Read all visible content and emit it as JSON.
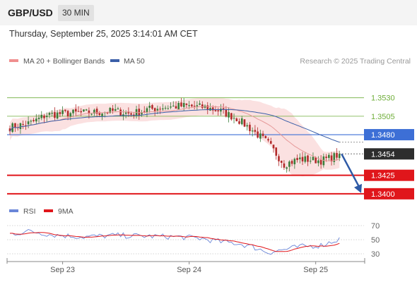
{
  "header": {
    "symbol": "GBP/USD",
    "timeframe": "30 MIN"
  },
  "timestamp": "Thursday, September 25, 2025 3:14:01 AM CET",
  "legend": {
    "bollinger": "MA 20 + Bollinger Bands",
    "ma50": "MA 50",
    "credit": "Research © 2025 Trading Central",
    "rsi": "RSI",
    "rsi_ma": "9MA"
  },
  "colors": {
    "candle_up": "#3a7d3a",
    "candle_down": "#b22a2a",
    "bollinger_fill": "#fadcdc",
    "ma20": "#e69a9a",
    "ma50": "#3b5fa8",
    "resistance": "#6fae3a",
    "pivot": "#3d6fd6",
    "support": "#e0161b",
    "price_tag": "#2d2d2d",
    "rsi_line": "#6a86d8",
    "rsi_ma": "#e0161b",
    "forecast_arrow": "#2e5aa6"
  },
  "chart_data": {
    "type": "candlestick",
    "symbol": "GBP/USD",
    "interval": "30 MIN",
    "ylim": [
      1.3397,
      1.3565
    ],
    "x_ticks": [
      {
        "label": "Sep 23",
        "index": 20
      },
      {
        "label": "Sep 24",
        "index": 68
      },
      {
        "label": "Sep 25",
        "index": 116
      }
    ],
    "levels": [
      {
        "value": 1.353,
        "label": "1.3530",
        "kind": "resistance"
      },
      {
        "value": 1.3505,
        "label": "1.3505",
        "kind": "resistance"
      },
      {
        "value": 1.348,
        "label": "1.3480",
        "kind": "pivot"
      },
      {
        "value": 1.3425,
        "label": "1.3425",
        "kind": "support"
      },
      {
        "value": 1.34,
        "label": "1.3400",
        "kind": "support"
      }
    ],
    "last_price": {
      "value": 1.3454,
      "label": "1.3454"
    },
    "forecast": {
      "from": 1.3454,
      "to": 1.3401
    },
    "close_anchors": [
      {
        "i": 0,
        "v": 1.349
      },
      {
        "i": 8,
        "v": 1.3496
      },
      {
        "i": 14,
        "v": 1.3507
      },
      {
        "i": 22,
        "v": 1.3509
      },
      {
        "i": 32,
        "v": 1.351
      },
      {
        "i": 40,
        "v": 1.3512
      },
      {
        "i": 46,
        "v": 1.3508
      },
      {
        "i": 52,
        "v": 1.3514
      },
      {
        "i": 58,
        "v": 1.3517
      },
      {
        "i": 66,
        "v": 1.3519
      },
      {
        "i": 74,
        "v": 1.3517
      },
      {
        "i": 80,
        "v": 1.3512
      },
      {
        "i": 86,
        "v": 1.3502
      },
      {
        "i": 92,
        "v": 1.3486
      },
      {
        "i": 98,
        "v": 1.3468
      },
      {
        "i": 104,
        "v": 1.344
      },
      {
        "i": 110,
        "v": 1.3447
      },
      {
        "i": 118,
        "v": 1.3445
      },
      {
        "i": 122,
        "v": 1.3449
      },
      {
        "i": 125,
        "v": 1.3454
      }
    ],
    "indicators": {
      "bollinger": {
        "period": 20,
        "label": "MA 20 + Bollinger Bands"
      },
      "ma": {
        "period": 50,
        "label": "MA 50"
      }
    },
    "rsi": {
      "label": "RSI",
      "ma_label": "9MA",
      "ylim": [
        20,
        80
      ],
      "levels": [
        70,
        50,
        30
      ],
      "anchors": [
        {
          "i": 0,
          "v": 58
        },
        {
          "i": 8,
          "v": 62
        },
        {
          "i": 16,
          "v": 57
        },
        {
          "i": 28,
          "v": 54
        },
        {
          "i": 40,
          "v": 56
        },
        {
          "i": 52,
          "v": 55
        },
        {
          "i": 64,
          "v": 54
        },
        {
          "i": 72,
          "v": 52
        },
        {
          "i": 80,
          "v": 47
        },
        {
          "i": 86,
          "v": 45
        },
        {
          "i": 92,
          "v": 40
        },
        {
          "i": 98,
          "v": 32
        },
        {
          "i": 104,
          "v": 36
        },
        {
          "i": 110,
          "v": 40
        },
        {
          "i": 118,
          "v": 42
        },
        {
          "i": 122,
          "v": 47
        },
        {
          "i": 125,
          "v": 51
        }
      ]
    }
  }
}
